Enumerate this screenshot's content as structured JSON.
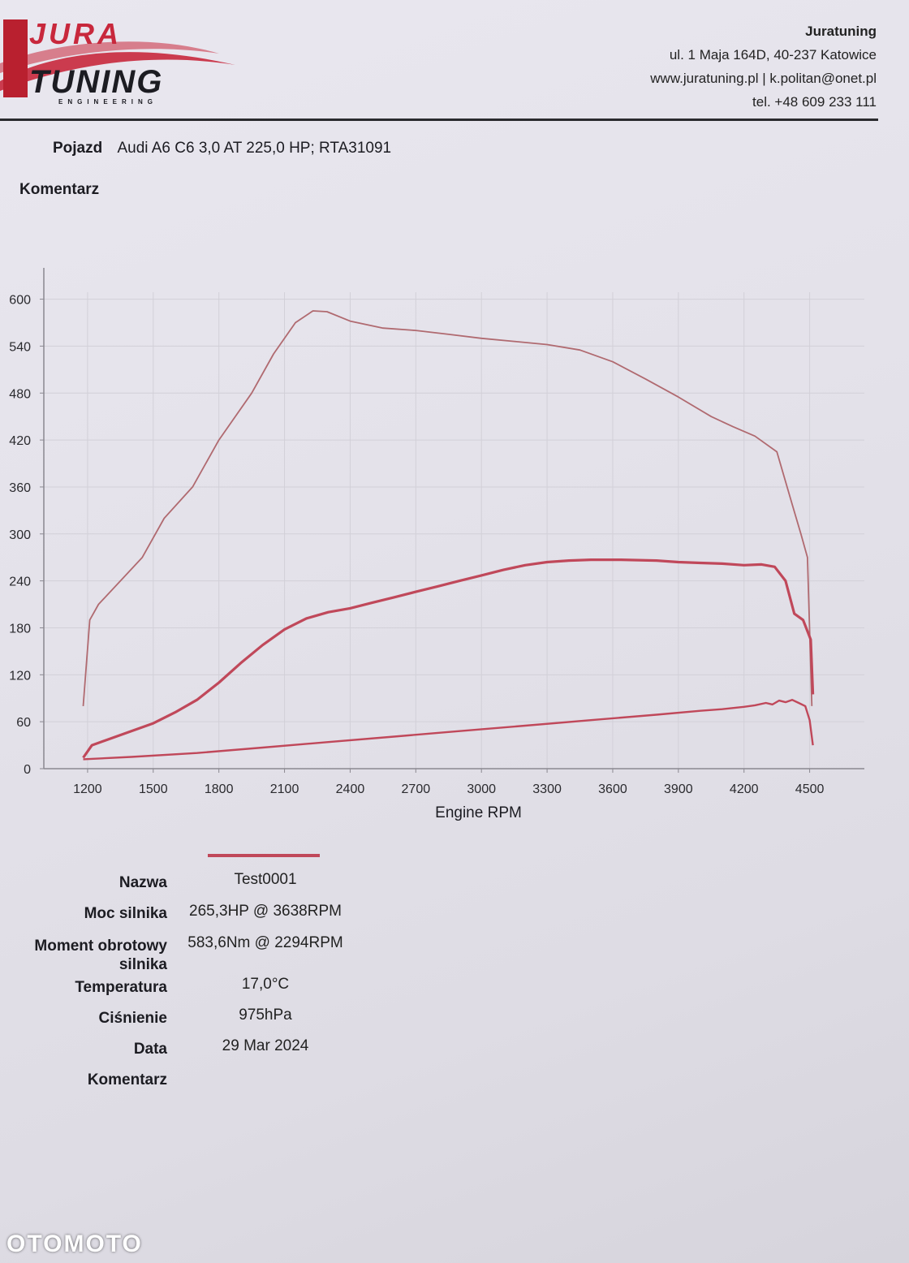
{
  "header": {
    "logo_text_top": "JURA",
    "logo_text_main": "TUNING",
    "logo_text_sub": "ENGINEERING",
    "company_name": "Juratuning",
    "address": "ul. 1 Maja 164D, 40-237 Katowice",
    "web_email": "www.juratuning.pl | k.politan@onet.pl",
    "phone": "tel. +48 609 233 111",
    "accent_color": "#c8283c"
  },
  "vehicle": {
    "label": "Pojazd",
    "value": "Audi A6 C6 3,0 AT 225,0 HP; RTA31091"
  },
  "comment_label": "Komentarz",
  "chart_data": {
    "type": "line",
    "xlabel": "Engine RPM",
    "ylabel": "",
    "x_ticks": [
      1200,
      1500,
      1800,
      2100,
      2400,
      2700,
      3000,
      3300,
      3600,
      3900,
      4200,
      4500
    ],
    "y_ticks": [
      0,
      60,
      120,
      180,
      240,
      300,
      360,
      420,
      480,
      540,
      600
    ],
    "xlim": [
      1000,
      4750
    ],
    "ylim": [
      0,
      640
    ],
    "grid": true,
    "series": [
      {
        "color": "#b06a70",
        "points": [
          [
            1180,
            80
          ],
          [
            1210,
            190
          ],
          [
            1250,
            210
          ],
          [
            1350,
            240
          ],
          [
            1450,
            270
          ],
          [
            1550,
            320
          ],
          [
            1680,
            360
          ],
          [
            1800,
            420
          ],
          [
            1950,
            480
          ],
          [
            2050,
            530
          ],
          [
            2150,
            570
          ],
          [
            2230,
            585
          ],
          [
            2294,
            584
          ],
          [
            2400,
            572
          ],
          [
            2550,
            563
          ],
          [
            2700,
            560
          ],
          [
            2850,
            555
          ],
          [
            3000,
            550
          ],
          [
            3150,
            546
          ],
          [
            3300,
            542
          ],
          [
            3450,
            535
          ],
          [
            3600,
            520
          ],
          [
            3750,
            498
          ],
          [
            3900,
            475
          ],
          [
            4050,
            450
          ],
          [
            4150,
            437
          ],
          [
            4250,
            425
          ],
          [
            4350,
            405
          ],
          [
            4420,
            338
          ],
          [
            4460,
            300
          ],
          [
            4490,
            270
          ],
          [
            4510,
            80
          ]
        ]
      },
      {
        "color": "#c0485a",
        "points": [
          [
            1180,
            14
          ],
          [
            1220,
            30
          ],
          [
            1300,
            38
          ],
          [
            1400,
            48
          ],
          [
            1500,
            58
          ],
          [
            1600,
            72
          ],
          [
            1700,
            88
          ],
          [
            1800,
            110
          ],
          [
            1900,
            135
          ],
          [
            2000,
            158
          ],
          [
            2100,
            178
          ],
          [
            2200,
            192
          ],
          [
            2300,
            200
          ],
          [
            2400,
            205
          ],
          [
            2500,
            212
          ],
          [
            2600,
            219
          ],
          [
            2700,
            226
          ],
          [
            2800,
            233
          ],
          [
            2900,
            240
          ],
          [
            3000,
            247
          ],
          [
            3100,
            254
          ],
          [
            3200,
            260
          ],
          [
            3300,
            264
          ],
          [
            3400,
            266
          ],
          [
            3500,
            267
          ],
          [
            3638,
            267
          ],
          [
            3800,
            266
          ],
          [
            3900,
            264
          ],
          [
            4000,
            263
          ],
          [
            4100,
            262
          ],
          [
            4200,
            260
          ],
          [
            4280,
            261
          ],
          [
            4340,
            258
          ],
          [
            4390,
            240
          ],
          [
            4430,
            198
          ],
          [
            4470,
            190
          ],
          [
            4505,
            165
          ],
          [
            4515,
            95
          ]
        ]
      },
      {
        "color": "#c0485a",
        "points": [
          [
            1180,
            12
          ],
          [
            1400,
            15
          ],
          [
            1700,
            20
          ],
          [
            2000,
            27
          ],
          [
            2300,
            34
          ],
          [
            2600,
            41
          ],
          [
            2900,
            48
          ],
          [
            3200,
            55
          ],
          [
            3500,
            62
          ],
          [
            3800,
            69
          ],
          [
            4000,
            74
          ],
          [
            4100,
            76
          ],
          [
            4200,
            79
          ],
          [
            4250,
            81
          ],
          [
            4300,
            84
          ],
          [
            4330,
            82
          ],
          [
            4360,
            87
          ],
          [
            4390,
            85
          ],
          [
            4420,
            88
          ],
          [
            4450,
            84
          ],
          [
            4480,
            80
          ],
          [
            4500,
            62
          ],
          [
            4515,
            30
          ]
        ]
      }
    ]
  },
  "results": {
    "name_label": "Nazwa",
    "name_value": "Test0001",
    "power_label": "Moc silnika",
    "power_value": "265,3HP @ 3638RPM",
    "torque_label_1": "Moment obrotowy",
    "torque_label_2": "silnika",
    "torque_value": "583,6Nm @ 2294RPM",
    "temp_label": "Temperatura",
    "temp_value": "17,0°C",
    "pressure_label": "Ciśnienie",
    "pressure_value": "975hPa",
    "date_label": "Data",
    "date_value": "29 Mar 2024",
    "comment_label": "Komentarz"
  },
  "watermark": "OTOMOTO"
}
